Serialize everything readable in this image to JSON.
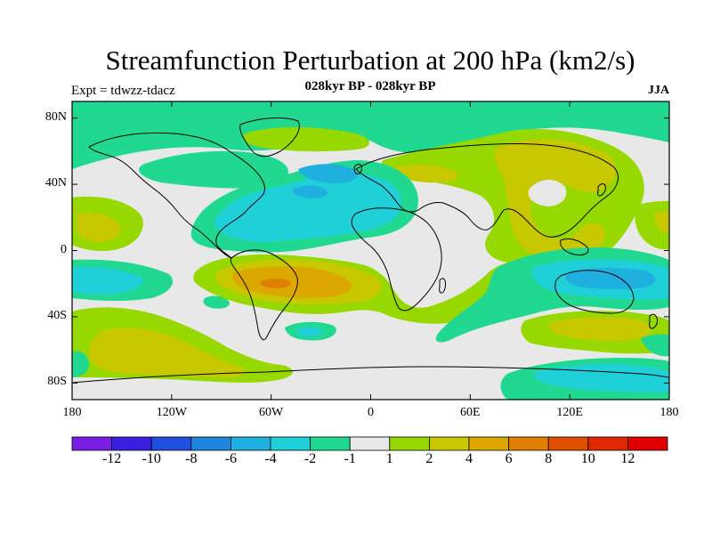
{
  "title": "Streamfunction Perturbation at 200 hPa (km2/s)",
  "subtitle": "028kyr BP - 028kyr BP",
  "expt_label": "Expt = tdwzz-tdacz",
  "season": "JJA",
  "lat_ticks": [
    {
      "label": "80N",
      "value": 80
    },
    {
      "label": "40N",
      "value": 40
    },
    {
      "label": "0",
      "value": 0
    },
    {
      "label": "40S",
      "value": -40
    },
    {
      "label": "80S",
      "value": -80
    }
  ],
  "lon_ticks": [
    {
      "label": "180",
      "value": -180
    },
    {
      "label": "120W",
      "value": -120
    },
    {
      "label": "60W",
      "value": -60
    },
    {
      "label": "0",
      "value": 0
    },
    {
      "label": "60E",
      "value": 60
    },
    {
      "label": "120E",
      "value": 120
    },
    {
      "label": "180",
      "value": 180
    }
  ],
  "colorbar": {
    "colors": [
      "#7a1ee6",
      "#3a1fe0",
      "#1f4fe0",
      "#1f86e0",
      "#1fb0e0",
      "#1fd0d8",
      "#20d890",
      "#e8e8e8",
      "#96d800",
      "#c8c800",
      "#dca800",
      "#e08000",
      "#e05000",
      "#e02800",
      "#e00000"
    ],
    "labels": [
      "-12",
      "-10",
      "-8",
      "-6",
      "-4",
      "-2",
      "-1",
      "1",
      "2",
      "4",
      "6",
      "8",
      "10",
      "12"
    ]
  },
  "colors": {
    "background_field": "#e8e8e8",
    "green_pos": "#96d800",
    "yellow_pos": "#c8c800",
    "orange_pos": "#dca800",
    "dark_orange_pos": "#e08000",
    "teal_neg": "#20d890",
    "cyan_neg": "#1fd0d8",
    "blue_neg": "#1fb0e0",
    "deeper_blue_neg": "#1f86e0"
  }
}
